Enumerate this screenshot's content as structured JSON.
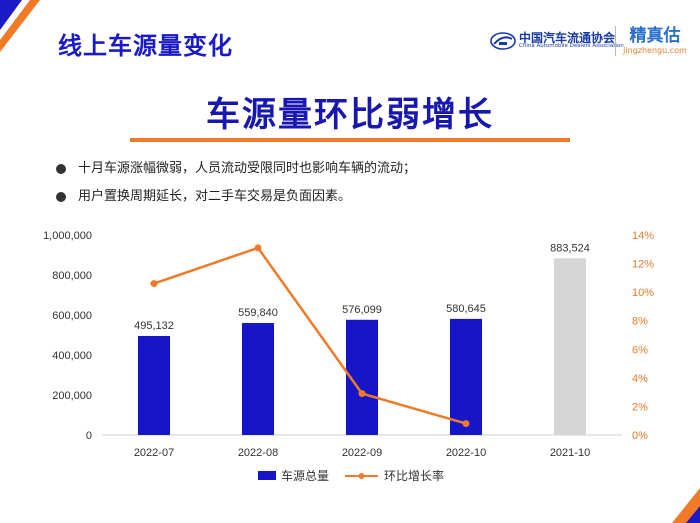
{
  "header": {
    "page_heading": "线上车源量变化",
    "org_logo_cn": "中国汽车流通协会",
    "org_logo_en": "China Automobile Dealers Association",
    "brand_logo_cn": "精真估",
    "brand_logo_en": "jingzhengu.com"
  },
  "main_title": "车源量环比弱增长",
  "bullets": [
    "十月车源涨幅微弱，人员流动受限同时也影响车辆的流动；",
    "用户置换周期延长，对二手车交易是负面因素。"
  ],
  "colors": {
    "bar": "#1616c8",
    "bar_prior_year": "#d6d6d6",
    "line": "#f07a28",
    "heading": "#1a1ac8",
    "accent": "#f07a28"
  },
  "chart_data": {
    "type": "bar+line",
    "categories": [
      "2022-07",
      "2022-08",
      "2022-09",
      "2022-10",
      "2021-10"
    ],
    "series": [
      {
        "name": "车源总量",
        "type": "bar",
        "axis": "left",
        "values": [
          495132,
          559840,
          576099,
          580645,
          883524
        ],
        "labels": [
          "495,132",
          "559,840",
          "576,099",
          "580,645",
          "883,524"
        ]
      },
      {
        "name": "环比增长率",
        "type": "line",
        "axis": "right",
        "values": [
          10.6,
          13.1,
          2.9,
          0.8,
          null
        ]
      }
    ],
    "y_left": {
      "range": [
        0,
        1000000
      ],
      "ticks": [
        "0",
        "200,000",
        "400,000",
        "600,000",
        "800,000",
        "1,000,000"
      ]
    },
    "y_right": {
      "range": [
        0,
        14
      ],
      "ticks": [
        "0%",
        "2%",
        "4%",
        "6%",
        "8%",
        "10%",
        "12%",
        "14%"
      ]
    },
    "legend_position": "bottom",
    "grid": false
  }
}
